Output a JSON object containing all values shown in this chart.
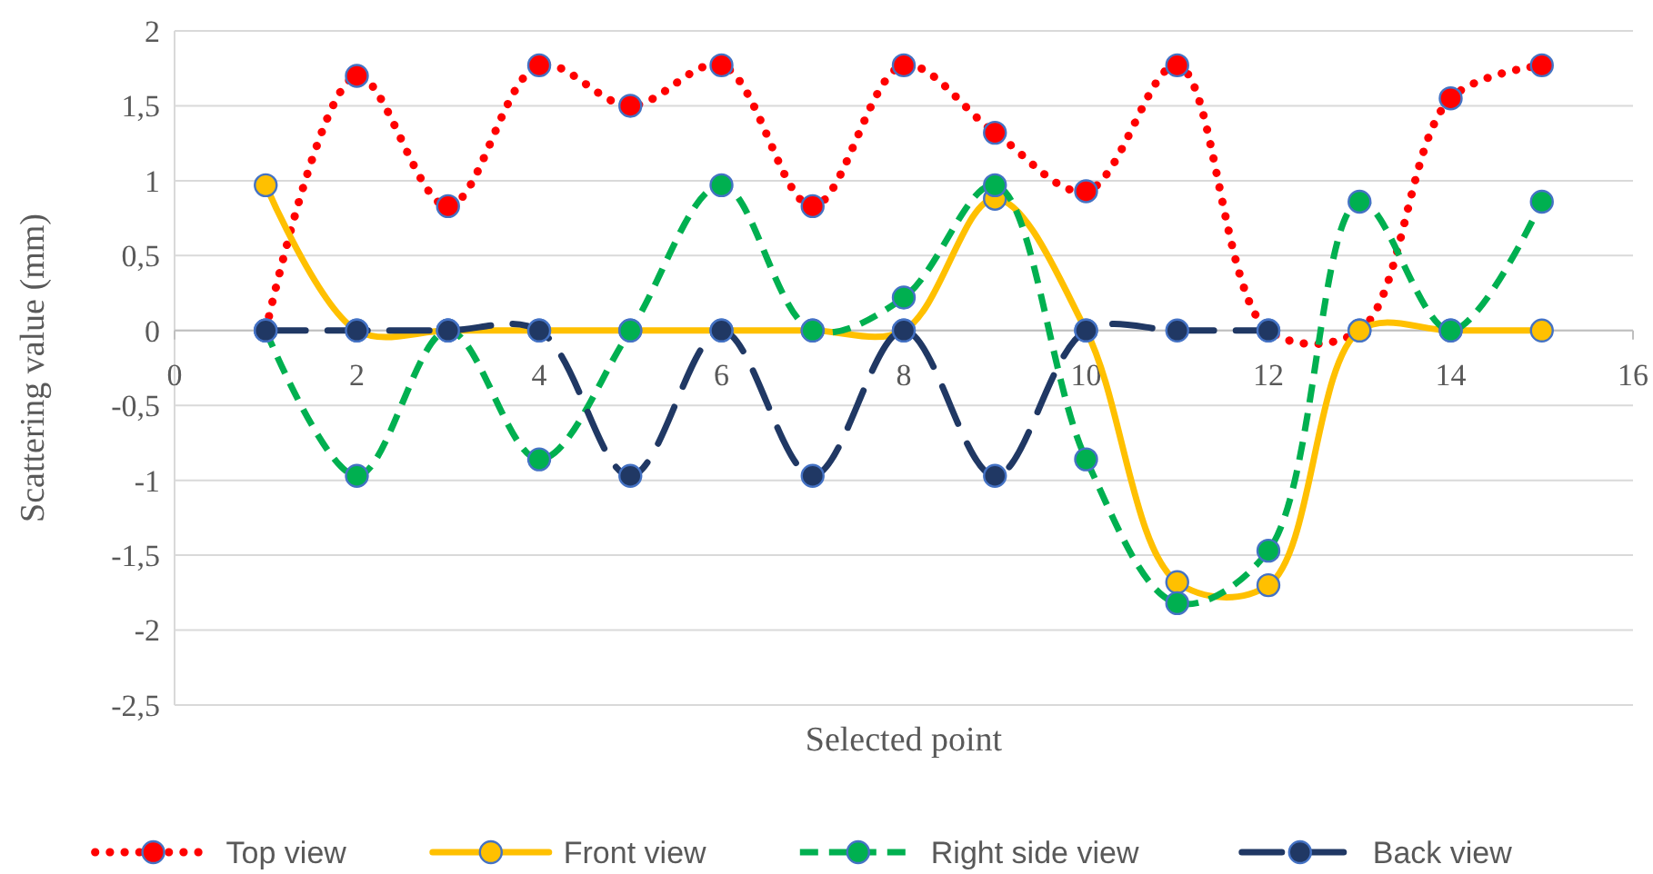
{
  "chart_data": {
    "type": "line",
    "xlabel": "Selected point",
    "ylabel": "Scattering value (mm)",
    "xlim": [
      0,
      16
    ],
    "xticks": [
      0,
      2,
      4,
      6,
      8,
      10,
      12,
      14,
      16
    ],
    "ylim": [
      -2.5,
      2
    ],
    "yticks": [
      {
        "value": -2.5,
        "label": "-2,5"
      },
      -2,
      {
        "value": -1.5,
        "label": "-1,5"
      },
      -1,
      {
        "value": -0.5,
        "label": "-0,5"
      },
      0,
      {
        "value": 0.5,
        "label": "0,5"
      },
      1,
      {
        "value": 1.5,
        "label": "1,5"
      },
      2
    ],
    "grid": "y",
    "legend": "bottom",
    "marker": "circle",
    "series": [
      {
        "name": "Top view",
        "color": "#ff0000",
        "line_style": "dotted",
        "x": [
          1,
          2,
          3,
          4,
          5,
          6,
          7,
          8,
          9,
          10,
          11,
          12,
          13,
          14,
          15
        ],
        "values": [
          0,
          1.7,
          0.83,
          1.77,
          1.5,
          1.77,
          0.83,
          1.77,
          1.32,
          0.93,
          1.77,
          0,
          0,
          1.55,
          1.77
        ]
      },
      {
        "name": "Front view",
        "color": "#ffc000",
        "line_style": "solid",
        "x": [
          1,
          2,
          3,
          4,
          5,
          6,
          7,
          8,
          9,
          10,
          11,
          12,
          13,
          14,
          15
        ],
        "values": [
          0.97,
          0,
          0,
          0,
          0,
          0,
          0,
          0,
          0.88,
          0,
          -1.68,
          -1.7,
          0,
          0,
          0
        ]
      },
      {
        "name": "Right side view",
        "color": "#00b050",
        "line_style": "dashed",
        "x": [
          1,
          2,
          3,
          4,
          5,
          6,
          7,
          8,
          9,
          10,
          11,
          12,
          13,
          14,
          15
        ],
        "values": [
          0,
          -0.97,
          0,
          -0.86,
          0,
          0.97,
          0,
          0.22,
          0.97,
          -0.86,
          -1.82,
          -1.47,
          0.86,
          0,
          0.86
        ]
      },
      {
        "name": "Back view",
        "color": "#203864",
        "line_style": "longdash",
        "x": [
          1,
          2,
          3,
          4,
          5,
          6,
          7,
          8,
          9,
          10,
          11,
          12
        ],
        "values": [
          0,
          0,
          0,
          0,
          -0.97,
          0,
          -0.97,
          0,
          -0.97,
          0,
          0,
          0
        ]
      }
    ]
  }
}
